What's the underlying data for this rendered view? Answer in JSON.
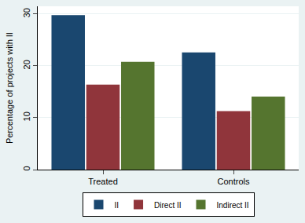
{
  "chart_data": {
    "type": "bar",
    "categories": [
      "Treated",
      "Controls"
    ],
    "series": [
      {
        "name": "II",
        "color": "#1a476f",
        "values": [
          29.8,
          22.6
        ]
      },
      {
        "name": "Direct II",
        "color": "#90353b",
        "values": [
          16.4,
          11.3
        ]
      },
      {
        "name": "Indirect II",
        "color": "#55752f",
        "values": [
          20.8,
          14.1
        ]
      }
    ],
    "y_label": "Percentage of projects with II",
    "ylim": [
      0,
      31.5
    ],
    "yticks": [
      0,
      10,
      20,
      30
    ],
    "grid": true,
    "legend": "bottom"
  }
}
